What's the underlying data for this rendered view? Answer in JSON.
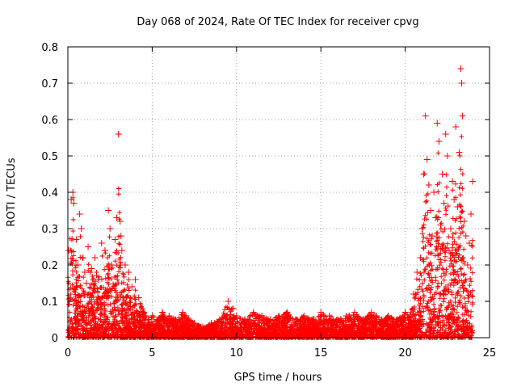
{
  "chart_data": {
    "type": "scatter",
    "title": "Day 068 of 2024, Rate Of TEC Index for receiver cpvg",
    "xlabel": "GPS time / hours",
    "ylabel": "ROTI / TECUs",
    "xlim": [
      0,
      25
    ],
    "ylim": [
      0,
      0.8
    ],
    "x_ticks": [
      0,
      5,
      10,
      15,
      20,
      25
    ],
    "y_ticks": [
      0,
      0.1,
      0.2,
      0.3,
      0.4,
      0.5,
      0.6,
      0.7,
      0.8
    ],
    "x_tick_labels": [
      "0",
      "5",
      "10",
      "15",
      "20",
      "25"
    ],
    "y_tick_labels": [
      "0",
      "0.1",
      "0.2",
      "0.3",
      "0.4",
      "0.5",
      "0.6",
      "0.7",
      "0.8"
    ],
    "grid": true,
    "marker": "+",
    "color": "#ff0000",
    "series": [
      {
        "name": "ROTI",
        "x": [
          0.05,
          0.2,
          0.3,
          0.35,
          0.5,
          0.6,
          0.7,
          0.8,
          0.9,
          1.0,
          1.1,
          1.2,
          1.4,
          1.6,
          1.8,
          2.0,
          2.2,
          2.4,
          2.5,
          2.6,
          2.8,
          2.9,
          3.0,
          3.1,
          3.15,
          3.2,
          3.4,
          3.6,
          3.8,
          4.0,
          4.2,
          4.4,
          4.5,
          4.6,
          4.8,
          5.0,
          5.3,
          5.6,
          6.0,
          6.4,
          6.8,
          7.0,
          7.5,
          8.0,
          8.5,
          9.0,
          9.5,
          9.8,
          10.0,
          10.5,
          11.0,
          11.5,
          12.0,
          12.5,
          13.0,
          13.5,
          14.0,
          14.5,
          15.0,
          15.5,
          16.0,
          16.5,
          17.0,
          17.5,
          18.0,
          18.3,
          18.6,
          19.0,
          19.5,
          20.0,
          20.3,
          20.5,
          20.7,
          20.9,
          21.0,
          21.1,
          21.2,
          21.3,
          21.4,
          21.5,
          21.6,
          21.7,
          21.8,
          21.9,
          22.0,
          22.1,
          22.2,
          22.3,
          22.4,
          22.5,
          22.6,
          22.7,
          22.8,
          22.9,
          23.0,
          23.1,
          23.2,
          23.3,
          23.35,
          23.4,
          23.5,
          23.6,
          23.7,
          23.8,
          23.9,
          24.0
        ],
        "y": [
          0.24,
          0.38,
          0.4,
          0.37,
          0.27,
          0.2,
          0.34,
          0.3,
          0.22,
          0.18,
          0.15,
          0.25,
          0.19,
          0.22,
          0.16,
          0.26,
          0.24,
          0.35,
          0.3,
          0.2,
          0.27,
          0.33,
          0.56,
          0.32,
          0.28,
          0.24,
          0.2,
          0.18,
          0.14,
          0.16,
          0.11,
          0.08,
          0.07,
          0.06,
          0.05,
          0.06,
          0.05,
          0.07,
          0.06,
          0.05,
          0.07,
          0.06,
          0.04,
          0.03,
          0.04,
          0.05,
          0.1,
          0.08,
          0.06,
          0.05,
          0.07,
          0.06,
          0.05,
          0.06,
          0.07,
          0.05,
          0.06,
          0.05,
          0.07,
          0.06,
          0.05,
          0.06,
          0.07,
          0.05,
          0.07,
          0.06,
          0.05,
          0.06,
          0.05,
          0.07,
          0.06,
          0.12,
          0.18,
          0.22,
          0.3,
          0.45,
          0.61,
          0.49,
          0.42,
          0.35,
          0.28,
          0.4,
          0.33,
          0.59,
          0.54,
          0.31,
          0.45,
          0.37,
          0.56,
          0.5,
          0.24,
          0.3,
          0.43,
          0.38,
          0.58,
          0.36,
          0.51,
          0.74,
          0.7,
          0.61,
          0.32,
          0.28,
          0.2,
          0.26,
          0.34,
          0.43
        ]
      }
    ]
  }
}
